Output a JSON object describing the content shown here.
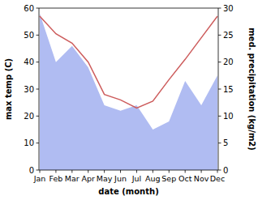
{
  "chart_data": {
    "type": "line",
    "categories": [
      "Jan",
      "Feb",
      "Mar",
      "Apr",
      "May",
      "Jun",
      "Jul",
      "Aug",
      "Sep",
      "Oct",
      "Nov",
      "Dec"
    ],
    "x_label": "date (month)",
    "y_label": "max temp (C)",
    "y2_label": "med. precipitation (kg/m2)",
    "ylim": [
      0,
      60
    ],
    "yticks": [
      0,
      10,
      20,
      30,
      40,
      50,
      60
    ],
    "y2lim": [
      0,
      30
    ],
    "y2ticks": [
      0,
      5,
      10,
      15,
      20,
      25,
      30
    ],
    "series": [
      {
        "type": "line",
        "color": "#cd5c5c",
        "values": [
          57,
          50.5,
          47,
          40,
          28,
          26,
          23,
          25.5,
          33.5,
          41,
          49,
          57
        ]
      },
      {
        "type": "area",
        "axis": "y2",
        "color": "#b0bcf2",
        "values": [
          29,
          20,
          23,
          19,
          12,
          11,
          12,
          7.5,
          9,
          16.5,
          12,
          17.5
        ]
      }
    ]
  }
}
